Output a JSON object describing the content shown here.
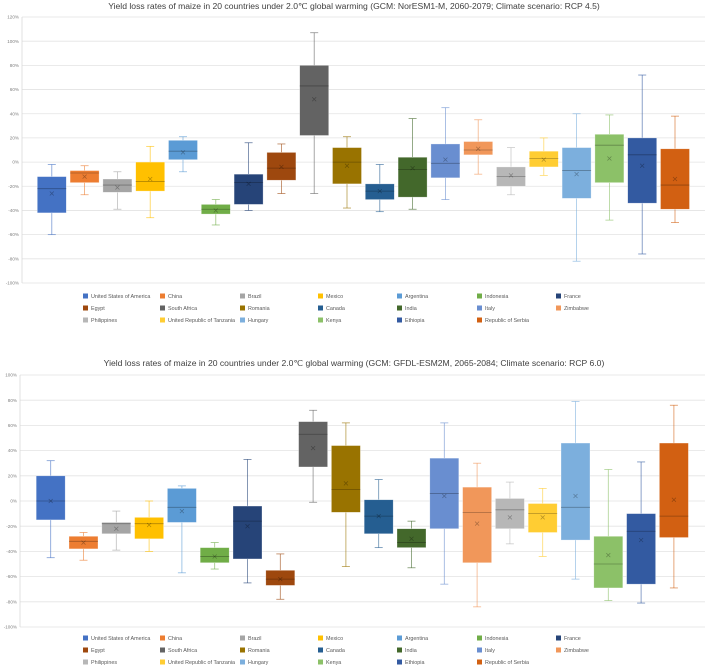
{
  "chart_data": [
    {
      "type": "box",
      "title": "Yield loss rates of maize in 20 countries under 2.0℃ global warming (GCM: NorESM1-M, 2060-2079; Climate scenario: RCP 4.5)",
      "ylim": [
        -100,
        120
      ],
      "yticks": [
        "120%",
        "100%",
        "80%",
        "60%",
        "40%",
        "20%",
        "0%",
        "-20%",
        "-40%",
        "-60%",
        "-80%",
        "-100%"
      ],
      "ytick_values": [
        120,
        100,
        80,
        60,
        40,
        20,
        0,
        -20,
        -40,
        -60,
        -80,
        -100
      ],
      "grid": true,
      "legend_position": "bottom",
      "series": [
        {
          "name": "United States of America",
          "color": "#4472C4",
          "min": -60,
          "q1": -42,
          "median": -22,
          "q3": -12,
          "max": -2,
          "mean": -26
        },
        {
          "name": "China",
          "color": "#ED7D31",
          "min": -27,
          "q1": -17,
          "median": -9,
          "q3": -7,
          "max": -3,
          "mean": -12
        },
        {
          "name": "Brazil",
          "color": "#A5A5A5",
          "min": -39,
          "q1": -25,
          "median": -19,
          "q3": -14,
          "max": -8,
          "mean": -21
        },
        {
          "name": "Mexico",
          "color": "#FFC000",
          "min": -46,
          "q1": -24,
          "median": -16,
          "q3": 0,
          "max": 13,
          "mean": -14
        },
        {
          "name": "Argentina",
          "color": "#5B9BD5",
          "min": -8,
          "q1": 2,
          "median": 9,
          "q3": 18,
          "max": 21,
          "mean": 8
        },
        {
          "name": "Indonesia",
          "color": "#70AD47",
          "min": -52,
          "q1": -43,
          "median": -39,
          "q3": -35,
          "max": -31,
          "mean": -40
        },
        {
          "name": "France",
          "color": "#264478",
          "min": -40,
          "q1": -35,
          "median": -17,
          "q3": -10,
          "max": 16,
          "mean": -18
        },
        {
          "name": "Egypt",
          "color": "#9E480E",
          "min": -26,
          "q1": -15,
          "median": -5,
          "q3": 8,
          "max": 15,
          "mean": -4
        },
        {
          "name": "South Africa",
          "color": "#636363",
          "min": -26,
          "q1": 22,
          "median": 63,
          "q3": 80,
          "max": 107,
          "mean": 52
        },
        {
          "name": "Romania",
          "color": "#997300",
          "min": -38,
          "q1": -18,
          "median": 0,
          "q3": 12,
          "max": 21,
          "mean": -3
        },
        {
          "name": "Canada",
          "color": "#255E91",
          "min": -41,
          "q1": -31,
          "median": -24,
          "q3": -18,
          "max": -2,
          "mean": -24
        },
        {
          "name": "India",
          "color": "#43682B",
          "min": -39,
          "q1": -29,
          "median": -6,
          "q3": 4,
          "max": 36,
          "mean": -5
        },
        {
          "name": "Italy",
          "color": "#698ED0",
          "min": -31,
          "q1": -13,
          "median": -1,
          "q3": 15,
          "max": 45,
          "mean": 2
        },
        {
          "name": "Zimbabwe",
          "color": "#F1975A",
          "min": -10,
          "q1": 6,
          "median": 10,
          "q3": 17,
          "max": 35,
          "mean": 11
        },
        {
          "name": "Philippines",
          "color": "#B7B7B7",
          "min": -27,
          "q1": -20,
          "median": -12,
          "q3": -4,
          "max": 12,
          "mean": -11
        },
        {
          "name": "United Republic of Tanzania",
          "color": "#FFCD33",
          "min": -11,
          "q1": -4,
          "median": 3,
          "q3": 9,
          "max": 20,
          "mean": 2
        },
        {
          "name": "Hungary",
          "color": "#7CAFDD",
          "min": -82,
          "q1": -30,
          "median": -7,
          "q3": 12,
          "max": 40,
          "mean": -10
        },
        {
          "name": "Kenya",
          "color": "#8CC168",
          "min": -48,
          "q1": -17,
          "median": 14,
          "q3": 23,
          "max": 39,
          "mean": 3
        },
        {
          "name": "Ethiopia",
          "color": "#335AA1",
          "min": -76,
          "q1": -34,
          "median": 6,
          "q3": 20,
          "max": 72,
          "mean": -3
        },
        {
          "name": "Republic of Serbia",
          "color": "#D26012",
          "min": -50,
          "q1": -39,
          "median": -19,
          "q3": 11,
          "max": 38,
          "mean": -14
        }
      ]
    },
    {
      "type": "box",
      "title": "Yield loss rates of maize in 20 countries under 2.0℃ global warming (GCM: GFDL-ESM2M, 2065-2084; Climate scenario: RCP 6.0)",
      "ylim": [
        -100,
        100
      ],
      "yticks": [
        "100%",
        "80%",
        "60%",
        "40%",
        "20%",
        "0%",
        "-20%",
        "-40%",
        "-60%",
        "-80%",
        "-100%"
      ],
      "ytick_values": [
        100,
        80,
        60,
        40,
        20,
        0,
        -20,
        -40,
        -60,
        -80,
        -100
      ],
      "grid": true,
      "legend_position": "bottom",
      "series": [
        {
          "name": "United States of America",
          "color": "#4472C4",
          "min": -45,
          "q1": -15,
          "median": 0,
          "q3": 20,
          "max": 32,
          "mean": 0
        },
        {
          "name": "China",
          "color": "#ED7D31",
          "min": -47,
          "q1": -38,
          "median": -32,
          "q3": -28,
          "max": -25,
          "mean": -33
        },
        {
          "name": "Brazil",
          "color": "#A5A5A5",
          "min": -39,
          "q1": -26,
          "median": -18,
          "q3": -17,
          "max": -8,
          "mean": -22
        },
        {
          "name": "Mexico",
          "color": "#FFC000",
          "min": -40,
          "q1": -30,
          "median": -18,
          "q3": -13,
          "max": 0,
          "mean": -19
        },
        {
          "name": "Argentina",
          "color": "#5B9BD5",
          "min": -57,
          "q1": -17,
          "median": -5,
          "q3": 10,
          "max": 12,
          "mean": -8
        },
        {
          "name": "Indonesia",
          "color": "#70AD47",
          "min": -54,
          "q1": -49,
          "median": -44,
          "q3": -37,
          "max": -33,
          "mean": -44
        },
        {
          "name": "France",
          "color": "#264478",
          "min": -65,
          "q1": -46,
          "median": -16,
          "q3": -4,
          "max": 33,
          "mean": -20
        },
        {
          "name": "Egypt",
          "color": "#9E480E",
          "min": -78,
          "q1": -67,
          "median": -62,
          "q3": -55,
          "max": -42,
          "mean": -62
        },
        {
          "name": "South Africa",
          "color": "#636363",
          "min": -1,
          "q1": 27,
          "median": 53,
          "q3": 63,
          "max": 72,
          "mean": 42
        },
        {
          "name": "Romania",
          "color": "#997300",
          "min": -52,
          "q1": -9,
          "median": 9,
          "q3": 44,
          "max": 62,
          "mean": 14
        },
        {
          "name": "Canada",
          "color": "#255E91",
          "min": -37,
          "q1": -26,
          "median": -12,
          "q3": 1,
          "max": 17,
          "mean": -12
        },
        {
          "name": "India",
          "color": "#43682B",
          "min": -53,
          "q1": -37,
          "median": -33,
          "q3": -22,
          "max": -16,
          "mean": -30
        },
        {
          "name": "Italy",
          "color": "#698ED0",
          "min": -66,
          "q1": -22,
          "median": 6,
          "q3": 34,
          "max": 62,
          "mean": 4
        },
        {
          "name": "Zimbabwe",
          "color": "#F1975A",
          "min": -84,
          "q1": -49,
          "median": -9,
          "q3": 11,
          "max": 30,
          "mean": -18
        },
        {
          "name": "Philippines",
          "color": "#B7B7B7",
          "min": -34,
          "q1": -22,
          "median": -7,
          "q3": 2,
          "max": 15,
          "mean": -13
        },
        {
          "name": "United Republic of Tanzania",
          "color": "#FFCD33",
          "min": -44,
          "q1": -25,
          "median": -10,
          "q3": -2,
          "max": 10,
          "mean": -13
        },
        {
          "name": "Hungary",
          "color": "#7CAFDD",
          "min": -62,
          "q1": -31,
          "median": -5,
          "q3": 46,
          "max": 79,
          "mean": 4
        },
        {
          "name": "Kenya",
          "color": "#8CC168",
          "min": -79,
          "q1": -69,
          "median": -50,
          "q3": -28,
          "max": 25,
          "mean": -43
        },
        {
          "name": "Ethiopia",
          "color": "#335AA1",
          "min": -81,
          "q1": -66,
          "median": -24,
          "q3": -10,
          "max": 31,
          "mean": -31
        },
        {
          "name": "Republic of Serbia",
          "color": "#D26012",
          "min": -69,
          "q1": -29,
          "median": -12,
          "q3": 46,
          "max": 76,
          "mean": 1
        }
      ]
    }
  ]
}
